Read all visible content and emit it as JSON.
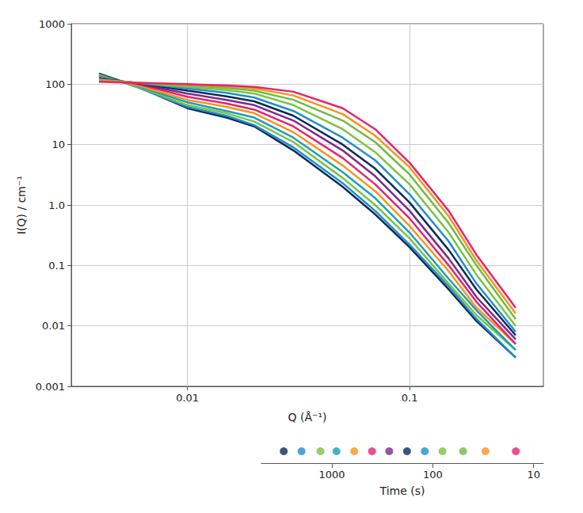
{
  "chart_data": {
    "type": "line",
    "xlabel": "Q (Å⁻¹)",
    "ylabel": "I(Q) / cm⁻¹",
    "zlabel": "Time (s)",
    "log": true,
    "grid": true,
    "x": [
      0.004,
      0.006,
      0.01,
      0.015,
      0.02,
      0.03,
      0.05,
      0.07,
      0.1,
      0.15,
      0.2,
      0.3
    ],
    "xlim": [
      0.003,
      0.4
    ],
    "xticks": [
      0.01,
      0.1
    ],
    "ylim": [
      0.001,
      1000
    ],
    "yticks": [
      0.001,
      0.01,
      0.1,
      {
        "value": 1,
        "label": "1.0"
      },
      10,
      100,
      1000
    ],
    "zlim": [
      8,
      5000
    ],
    "zticks": [
      10,
      100,
      1000
    ],
    "series": [
      {
        "time": 3000,
        "color": "#0b2a5b",
        "values": [
          150,
          90,
          40,
          28,
          20,
          8,
          2,
          0.7,
          0.2,
          0.04,
          0.012,
          0.003
        ]
      },
      {
        "time": 2000,
        "color": "#1f8fc7",
        "values": [
          145,
          88,
          42,
          30,
          21,
          9,
          2.3,
          0.8,
          0.22,
          0.045,
          0.013,
          0.003
        ]
      },
      {
        "time": 1300,
        "color": "#7cc242",
        "values": [
          140,
          90,
          45,
          33,
          24,
          11,
          2.8,
          1,
          0.28,
          0.05,
          0.015,
          0.004
        ]
      },
      {
        "time": 900,
        "color": "#1aa0b8",
        "values": [
          135,
          92,
          50,
          36,
          28,
          13,
          3.5,
          1.3,
          0.35,
          0.06,
          0.018,
          0.004
        ]
      },
      {
        "time": 600,
        "color": "#f7941d",
        "values": [
          130,
          95,
          55,
          42,
          33,
          16,
          4.5,
          1.7,
          0.45,
          0.08,
          0.02,
          0.005
        ]
      },
      {
        "time": 400,
        "color": "#e6236f",
        "values": [
          128,
          100,
          62,
          48,
          38,
          20,
          6,
          2.2,
          0.6,
          0.1,
          0.025,
          0.005
        ]
      },
      {
        "time": 270,
        "color": "#7b2a8a",
        "values": [
          125,
          102,
          70,
          55,
          45,
          25,
          8,
          3,
          0.8,
          0.13,
          0.03,
          0.006
        ]
      },
      {
        "time": 180,
        "color": "#0b2a5b",
        "values": [
          122,
          104,
          78,
          63,
          52,
          30,
          10,
          4,
          1.1,
          0.18,
          0.04,
          0.007
        ]
      },
      {
        "time": 120,
        "color": "#1f8fc7",
        "values": [
          120,
          105,
          85,
          72,
          60,
          36,
          13,
          5.5,
          1.5,
          0.25,
          0.05,
          0.008
        ]
      },
      {
        "time": 80,
        "color": "#7cc242",
        "values": [
          118,
          105,
          90,
          80,
          70,
          45,
          18,
          7.5,
          2.2,
          0.35,
          0.07,
          0.01
        ]
      },
      {
        "time": 50,
        "color": "#6dbb45",
        "values": [
          115,
          106,
          95,
          87,
          78,
          55,
          25,
          11,
          3.2,
          0.5,
          0.1,
          0.013
        ]
      },
      {
        "time": 30,
        "color": "#f7941d",
        "values": [
          112,
          106,
          98,
          92,
          85,
          65,
          32,
          14,
          4.2,
          0.65,
          0.12,
          0.016
        ]
      },
      {
        "time": 15,
        "color": "#e6236f",
        "values": [
          110,
          105,
          100,
          95,
          90,
          75,
          40,
          18,
          5,
          0.8,
          0.15,
          0.02
        ]
      }
    ]
  }
}
